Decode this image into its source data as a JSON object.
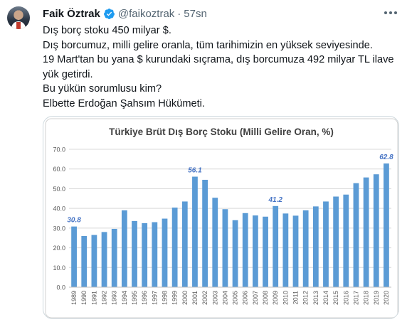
{
  "tweet": {
    "author_name": "Faik Öztrak",
    "handle": "@faikoztrak",
    "separator": "·",
    "time": "57sn",
    "lines": [
      "Dış borç stoku 450 milyar $.",
      "Dış borcumuz, milli gelire oranla, tüm tarihimizin en yüksek seviyesinde.",
      "19 Mart'tan bu yana $ kurundaki sıçrama, dış borcumuza 492 milyar TL ilave",
      "yük getirdi.",
      "Bu yükün sorumlusu kim?",
      "Elbette Erdoğan Şahsım Hükümeti."
    ]
  },
  "icons": {
    "verified": "verified-badge-icon",
    "more": "more-dots-icon"
  },
  "colors": {
    "verified": "#1d9bf0",
    "bar": "#5b9bd5",
    "label": "#4472c4",
    "title": "#404040",
    "grid": "#d9d9d9",
    "muted": "#536471"
  },
  "chart_data": {
    "type": "bar",
    "title": "Türkiye Brüt Dış Borç Stoku (Milli Gelire Oran, %)",
    "categories": [
      "1989",
      "1990",
      "1991",
      "1992",
      "1993",
      "1994",
      "1995",
      "1996",
      "1997",
      "1998",
      "1999",
      "2000",
      "2001",
      "2002",
      "2003",
      "2004",
      "2005",
      "2006",
      "2007",
      "2008",
      "2009",
      "2010",
      "2011",
      "2012",
      "2013",
      "2014",
      "2015",
      "2016",
      "2017",
      "2018",
      "2019",
      "2020"
    ],
    "values": [
      30.8,
      26.0,
      26.5,
      28.0,
      29.6,
      39.0,
      33.6,
      32.5,
      33.0,
      34.8,
      40.4,
      43.5,
      56.1,
      54.5,
      45.4,
      39.6,
      34.0,
      37.6,
      36.4,
      35.8,
      41.2,
      37.4,
      36.3,
      39.0,
      41.0,
      43.5,
      46.0,
      47.0,
      52.8,
      55.7,
      57.3,
      62.8
    ],
    "labeled": {
      "1989": "30.8",
      "2001": "56.1",
      "2009": "41.2",
      "2020": "62.8"
    },
    "yticks": [
      "0.0",
      "10.0",
      "20.0",
      "30.0",
      "40.0",
      "50.0",
      "60.0",
      "70.0"
    ],
    "ylim": [
      0,
      70
    ],
    "grid": true,
    "legend": "none"
  }
}
